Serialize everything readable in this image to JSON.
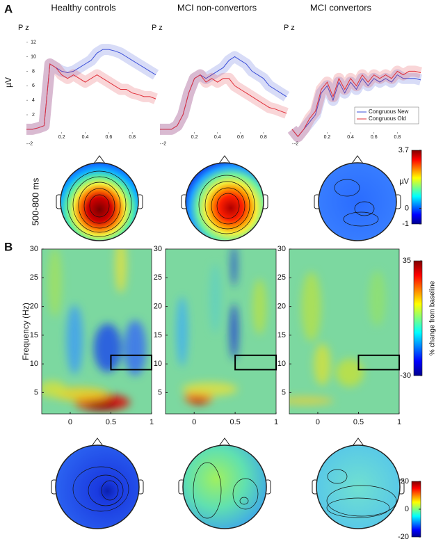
{
  "panel_labels": [
    "A",
    "B"
  ],
  "column_titles": [
    "Healthy controls",
    "MCI non-convertors",
    "MCI convertors"
  ],
  "topo_label": "500-800  ms",
  "chart_data": [
    {
      "type": "line",
      "title": "P z",
      "ylabel": "µV",
      "x": [
        -0.1,
        -0.05,
        0,
        0.05,
        0.1,
        0.15,
        0.2,
        0.25,
        0.3,
        0.35,
        0.4,
        0.45,
        0.5,
        0.55,
        0.6,
        0.65,
        0.7,
        0.75,
        0.8,
        0.85,
        0.9,
        0.95,
        1.0
      ],
      "series": [
        {
          "color": "#3b4fd8",
          "values": [
            0,
            0,
            0.2,
            0.5,
            9,
            8.5,
            8,
            7.8,
            8,
            8.5,
            9,
            9.5,
            10.5,
            11,
            11,
            10.8,
            10.5,
            10,
            9.5,
            9,
            8.5,
            8,
            7.5
          ]
        },
        {
          "color": "#e0303a",
          "values": [
            0,
            0,
            0.2,
            0.5,
            9,
            8.5,
            7.5,
            7,
            7.5,
            7,
            6.5,
            7,
            7.5,
            7,
            6.5,
            6,
            5.5,
            5.5,
            5,
            4.8,
            4.5,
            4.5,
            4.2
          ]
        }
      ],
      "xlim": [
        -0.1,
        1.0
      ],
      "xticks": [
        0.2,
        0.4,
        0.6,
        0.8
      ],
      "ylim": [
        -2.5,
        13.5
      ],
      "yticks": [
        -2,
        2,
        4,
        6,
        8,
        10,
        12
      ]
    },
    {
      "type": "line",
      "title": "P z",
      "x": [
        -0.1,
        -0.05,
        0,
        0.05,
        0.1,
        0.15,
        0.2,
        0.25,
        0.3,
        0.35,
        0.4,
        0.45,
        0.5,
        0.55,
        0.6,
        0.65,
        0.7,
        0.75,
        0.8,
        0.85,
        0.9,
        0.95,
        1.0
      ],
      "series": [
        {
          "color": "#3b4fd8",
          "values": [
            0,
            0,
            0,
            0.5,
            2,
            5,
            7,
            7.5,
            7,
            7.5,
            8,
            8.5,
            9.5,
            10,
            9.5,
            9,
            8,
            7.5,
            7,
            6,
            5.5,
            5,
            4.5
          ]
        },
        {
          "color": "#e0303a",
          "values": [
            0,
            0,
            0,
            0.5,
            2,
            5,
            7,
            7.5,
            6.5,
            7,
            6.5,
            7,
            7,
            6,
            5.5,
            5,
            4.5,
            4,
            3.5,
            3,
            2.8,
            2.5,
            2.2
          ]
        }
      ],
      "xlim": [
        -0.1,
        1.0
      ],
      "xticks": [
        0.2,
        0.4,
        0.6,
        0.8
      ],
      "ylim": [
        -2.5,
        13.5
      ],
      "yticks": [
        -2
      ]
    },
    {
      "type": "line",
      "title": "P z",
      "x": [
        -0.1,
        -0.05,
        0,
        0.05,
        0.1,
        0.15,
        0.2,
        0.25,
        0.3,
        0.35,
        0.4,
        0.45,
        0.5,
        0.55,
        0.6,
        0.65,
        0.7,
        0.75,
        0.8,
        0.85,
        0.9,
        0.95,
        1.0
      ],
      "series": [
        {
          "name": "Congruous New",
          "color": "#3b4fd8",
          "values": [
            0,
            -1,
            0,
            1,
            2,
            5,
            6,
            4,
            6.5,
            5,
            6.5,
            5.5,
            7,
            6,
            7,
            6.5,
            7,
            6.5,
            7.5,
            7,
            7,
            7,
            6.8
          ]
        },
        {
          "name": "Congruous Old",
          "color": "#e0303a",
          "values": [
            0,
            -1,
            0,
            1.5,
            2.5,
            5.5,
            6.5,
            4.5,
            7,
            5.5,
            7,
            6,
            7.5,
            6.5,
            7.5,
            7,
            7.5,
            7,
            8,
            7.5,
            8,
            8,
            7.8
          ]
        }
      ],
      "xlim": [
        -0.1,
        1.0
      ],
      "xticks": [
        0.2,
        0.4,
        0.6,
        0.8
      ],
      "ylim": [
        -2.5,
        13.5
      ],
      "yticks": [
        -2
      ],
      "legend": "lower right"
    },
    {
      "type": "heatmap",
      "ylabel": "Frequency (Hz)",
      "xlim": [
        -0.35,
        1
      ],
      "xticks": [
        0,
        0.5,
        1
      ],
      "ylim": [
        1.3,
        30
      ],
      "yticks": [
        5,
        10,
        15,
        20,
        25,
        30
      ],
      "box": {
        "x": [
          0.5,
          1
        ],
        "y": [
          9,
          11.5
        ]
      }
    },
    {
      "type": "heatmap",
      "xlim": [
        -0.35,
        1
      ],
      "xticks": [
        0,
        0.5,
        1
      ],
      "ylim": [
        1.3,
        30
      ],
      "yticks": [
        5,
        10,
        15,
        20,
        25,
        30
      ],
      "box": {
        "x": [
          0.5,
          1
        ],
        "y": [
          9,
          11.5
        ]
      }
    },
    {
      "type": "heatmap",
      "xlim": [
        -0.35,
        1
      ],
      "xticks": [
        0,
        0.5,
        1
      ],
      "ylim": [
        1.3,
        30
      ],
      "yticks": [
        5,
        10,
        15,
        20,
        25,
        30
      ],
      "box": {
        "x": [
          0.5,
          1
        ],
        "y": [
          9,
          11.5
        ]
      }
    },
    {
      "type": "colorbar",
      "ylim": [
        -1,
        3.7
      ],
      "yticks": [
        3.7,
        0,
        -1
      ],
      "label": "µV"
    },
    {
      "type": "colorbar",
      "ylim": [
        -30,
        35
      ],
      "yticks": [
        35,
        -30
      ],
      "label": "% change from baseline"
    },
    {
      "type": "colorbar",
      "ylim": [
        -20,
        20
      ],
      "yticks": [
        20,
        0,
        -20
      ]
    }
  ]
}
